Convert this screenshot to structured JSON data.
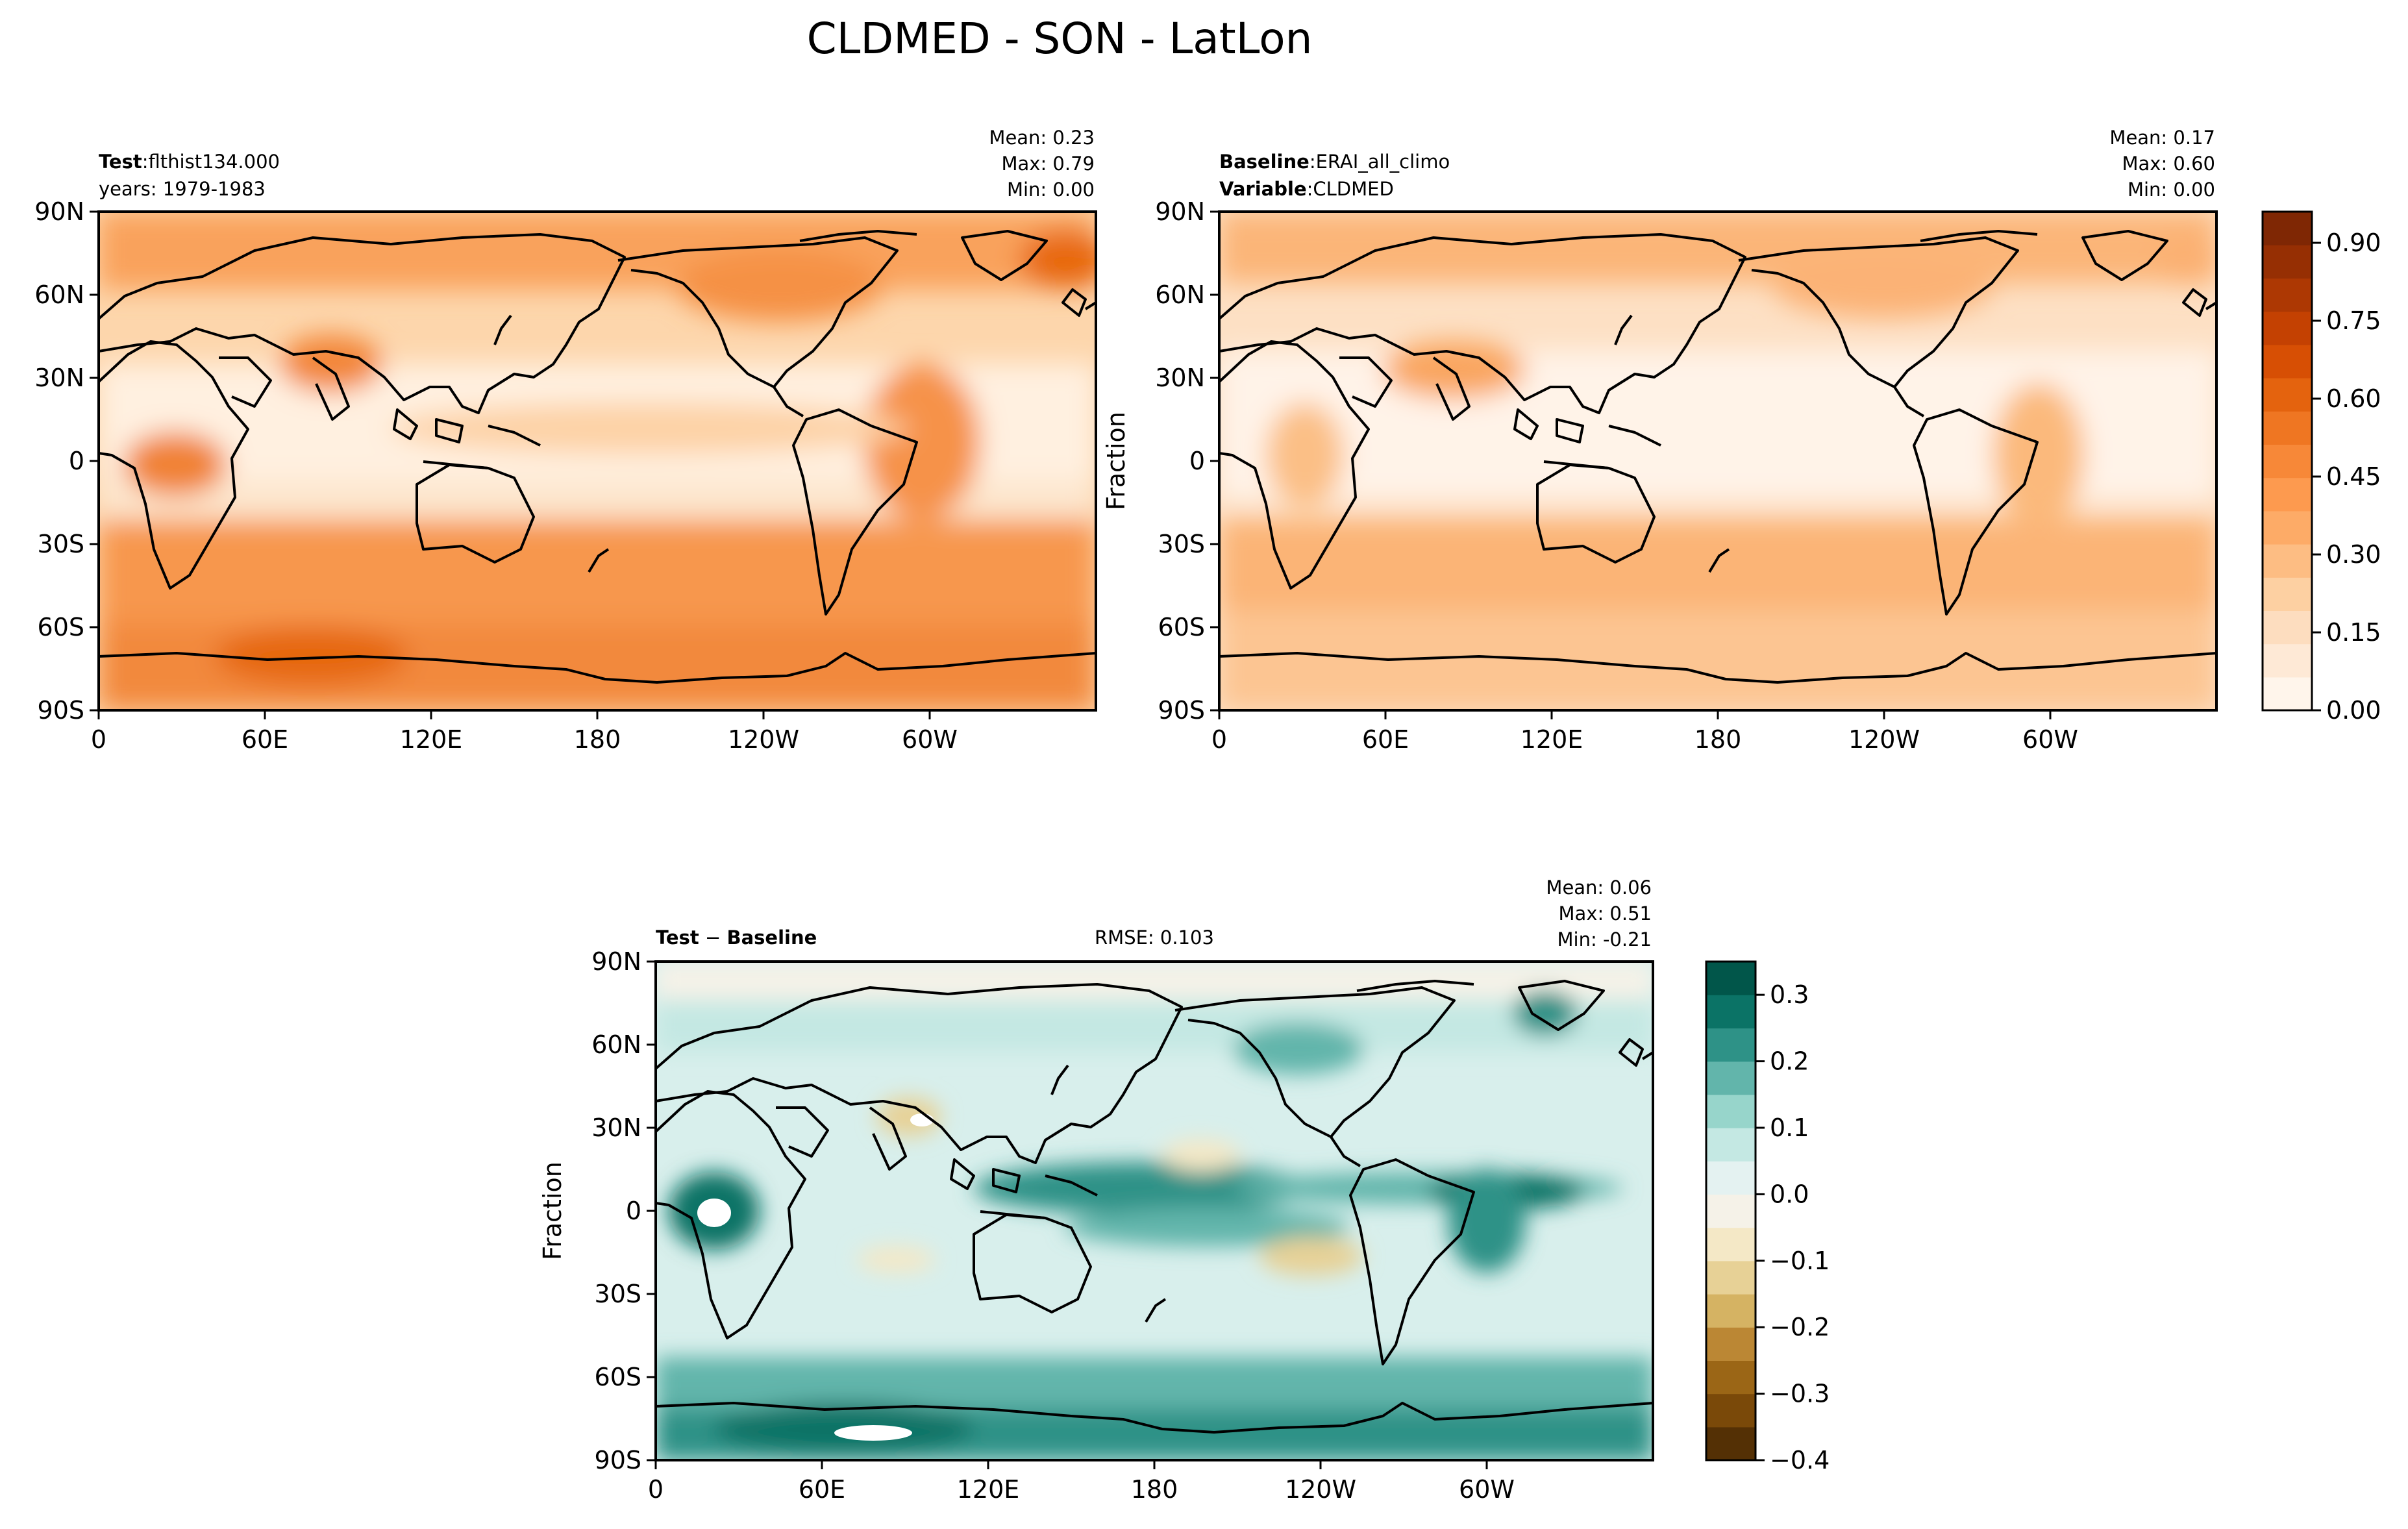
{
  "figure": {
    "title": "CLDMED - SON - LatLon"
  },
  "panels": {
    "test": {
      "title_bold": "Test",
      "title_sep": ":",
      "title_value": "flthist134.000",
      "subtitle": "years: 1979-1983",
      "stats": {
        "mean": "Mean:  0.23",
        "max": "Max:  0.79",
        "min": "Min:  0.00"
      }
    },
    "baseline": {
      "title_bold": "Baseline",
      "title_sep": ":",
      "title_value": "ERAI_all_climo",
      "subtitle_bold": "Variable",
      "subtitle_sep": ":",
      "subtitle_value": "CLDMED",
      "ylabel": "Fraction",
      "stats": {
        "mean": "Mean:  0.17",
        "max": "Max:  0.60",
        "min": "Min:  0.00"
      }
    },
    "diff": {
      "title_bold_1": "Test",
      "title_sep": " − ",
      "title_bold_2": "Baseline",
      "rmse": "RMSE: 0.103",
      "ylabel": "Fraction",
      "stats": {
        "mean": "Mean:  0.06",
        "max": "Max:  0.51",
        "min": "Min: -0.21"
      }
    }
  },
  "axes": {
    "lat_ticks": [
      "90N",
      "60N",
      "30N",
      "0",
      "30S",
      "60S",
      "90S"
    ],
    "lon_ticks": [
      "0",
      "60E",
      "120E",
      "180",
      "120W",
      "60W"
    ]
  },
  "colorbars": {
    "top": {
      "ticks": [
        "0.00",
        "0.15",
        "0.30",
        "0.45",
        "0.60",
        "0.75",
        "0.90"
      ],
      "colors": [
        "#fff5eb",
        "#fee9d6",
        "#fdddbf",
        "#fdd0a2",
        "#fdbd83",
        "#fdab67",
        "#fd9a4f",
        "#f78838",
        "#ef7622",
        "#e4630e",
        "#d74f04",
        "#c44102",
        "#ad3803",
        "#962f03",
        "#7f2704"
      ]
    },
    "diff": {
      "ticks": [
        "0.3",
        "0.2",
        "0.1",
        "0.0",
        "−0.1",
        "−0.2",
        "−0.3",
        "−0.4"
      ],
      "colors": [
        "#543005",
        "#7a4909",
        "#9b6616",
        "#bb8734",
        "#d5b363",
        "#e7d196",
        "#f4e8c6",
        "#f5f2e8",
        "#e4f2f1",
        "#c4e8e3",
        "#97d5cb",
        "#62b5ab",
        "#2e9287",
        "#0b7366",
        "#01564a"
      ]
    }
  },
  "chart_data": [
    {
      "type": "heatmap",
      "title": "Test",
      "subtitle": "years: 1979-1983",
      "x_ticks": [
        "0",
        "60E",
        "120E",
        "180",
        "120W",
        "60W"
      ],
      "y_ticks": [
        "90N",
        "60N",
        "30N",
        "0",
        "30S",
        "60S",
        "90S"
      ],
      "mean": 0.23,
      "max": 0.79,
      "min": 0.0,
      "colorbar_range": [
        0.0,
        0.96
      ],
      "description": "flthist134.000"
    },
    {
      "type": "heatmap",
      "title": "Baseline",
      "ylabel": "Fraction",
      "x_ticks": [
        "0",
        "60E",
        "120E",
        "180",
        "120W",
        "60W"
      ],
      "y_ticks": [
        "90N",
        "60N",
        "30N",
        "0",
        "30S",
        "60S",
        "90S"
      ],
      "mean": 0.17,
      "max": 0.6,
      "min": 0.0,
      "colorbar_range": [
        0.0,
        0.96
      ],
      "variable": "CLDMED"
    },
    {
      "type": "heatmap",
      "ylabel": "Fraction",
      "x_ticks": [
        "0",
        "60E",
        "120E",
        "180",
        "120W",
        "60W"
      ],
      "y_ticks": [
        "90N",
        "60N",
        "30N",
        "0",
        "30S",
        "60S",
        "90S"
      ],
      "mean": 0.06,
      "max": 0.51,
      "min": -0.21,
      "rmse": 0.103,
      "colorbar_range": [
        -0.4,
        0.35
      ]
    }
  ]
}
